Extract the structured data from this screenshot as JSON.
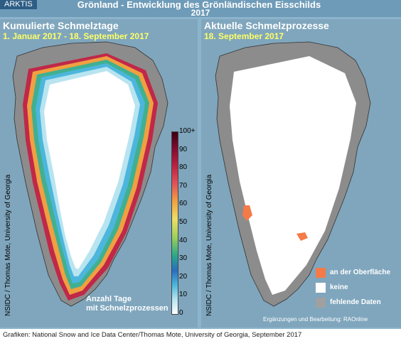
{
  "header": {
    "brand": "ARKTIS",
    "title": "Grönland -  Entwicklung des Grönländischen Eisschilds",
    "year": "2017"
  },
  "left_panel": {
    "title": "Kumulierte Schmelztage",
    "date": "1. Januar 2017 - 18. September 2017",
    "credit": "NSIDC / Thomas Mote, University of Georgia",
    "colorbar_ticks": [
      "100+",
      "90",
      "80",
      "70",
      "60",
      "50",
      "40",
      "30",
      "20",
      "10",
      "0"
    ],
    "annotation_line1": "Anzahl Tage",
    "annotation_line2": "mit Schnelzprozessen"
  },
  "right_panel": {
    "title": "Aktuelle Schmelzprozesse",
    "date": "18. September 2017",
    "credit": "NSIDC / Thomas Mote, University of Georgia",
    "legend": [
      {
        "label": "an der Oberfläche",
        "color": "#f47a48"
      },
      {
        "label": "keine",
        "color": "#ffffff"
      },
      {
        "label": "fehlende Daten",
        "color": "#a0a0a0"
      }
    ],
    "edit_credit": "Ergänzungen und Bearbeitung: RAOnline"
  },
  "footer": {
    "text": "Grafiken: National Snow and Ice Data Center/Thomas Mote, University of Georgia, September 2017"
  },
  "colors": {
    "ocean": "#7fa6bd",
    "land": "#8c8c8c",
    "ice": "#ffffff",
    "melt": "#f47a48",
    "header_bg": "#6e9bb8"
  }
}
